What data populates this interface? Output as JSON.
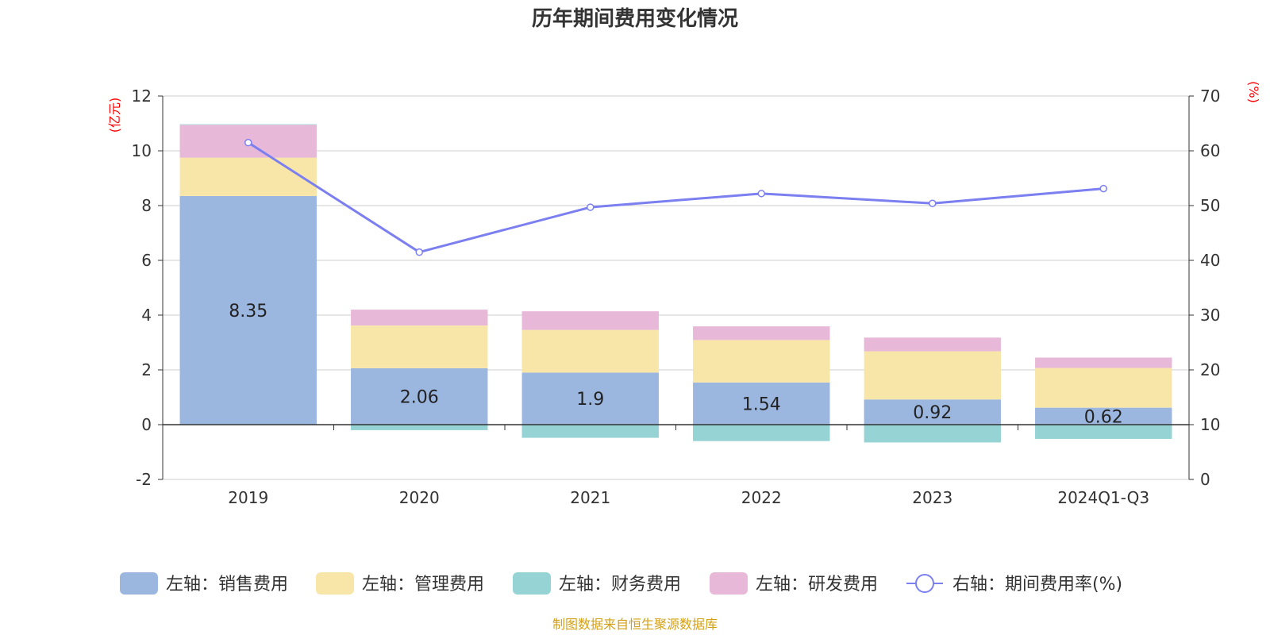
{
  "chart_data": {
    "type": "bar",
    "stacked": true,
    "title": "历年期间费用变化情况",
    "categories": [
      "2019",
      "2020",
      "2021",
      "2022",
      "2023",
      "2024Q1-Q3"
    ],
    "left_axis": {
      "unit": "(亿元)",
      "ylim": [
        -2,
        12
      ],
      "ticks": [
        "-2",
        "0",
        "2",
        "4",
        "6",
        "8",
        "10",
        "12"
      ]
    },
    "right_axis": {
      "unit": "(%)",
      "ylim": [
        0,
        70
      ],
      "ticks": [
        "0",
        "10",
        "20",
        "30",
        "40",
        "50",
        "60",
        "70"
      ]
    },
    "series": [
      {
        "name": "左轴：销售费用",
        "key": "sales",
        "color": "#9bb7e0",
        "values": [
          8.35,
          2.06,
          1.9,
          1.54,
          0.92,
          0.62
        ],
        "labels": [
          "8.35",
          "2.06",
          "1.9",
          "1.54",
          "0.92",
          "0.62"
        ]
      },
      {
        "name": "左轴：管理费用",
        "key": "admin",
        "color": "#f8e6a8",
        "values": [
          1.4,
          1.56,
          1.56,
          1.55,
          1.76,
          1.45
        ]
      },
      {
        "name": "左轴：财务费用",
        "key": "finance",
        "color": "#95d3d4",
        "values": [
          0.02,
          -0.2,
          -0.48,
          -0.6,
          -0.65,
          -0.52
        ]
      },
      {
        "name": "左轴：研发费用",
        "key": "rnd",
        "color": "#e8b8d8",
        "values": [
          1.2,
          0.58,
          0.68,
          0.5,
          0.5,
          0.38
        ]
      },
      {
        "name": "右轴：期间费用率(%)",
        "key": "rate",
        "type": "line",
        "axis": "right",
        "color": "#7b7ff0",
        "values": [
          61.5,
          41.5,
          49.7,
          52.2,
          50.4,
          53.1
        ]
      }
    ],
    "grid": true,
    "legend_position": "bottom"
  },
  "source_text": "制图数据来自恒生聚源数据库"
}
